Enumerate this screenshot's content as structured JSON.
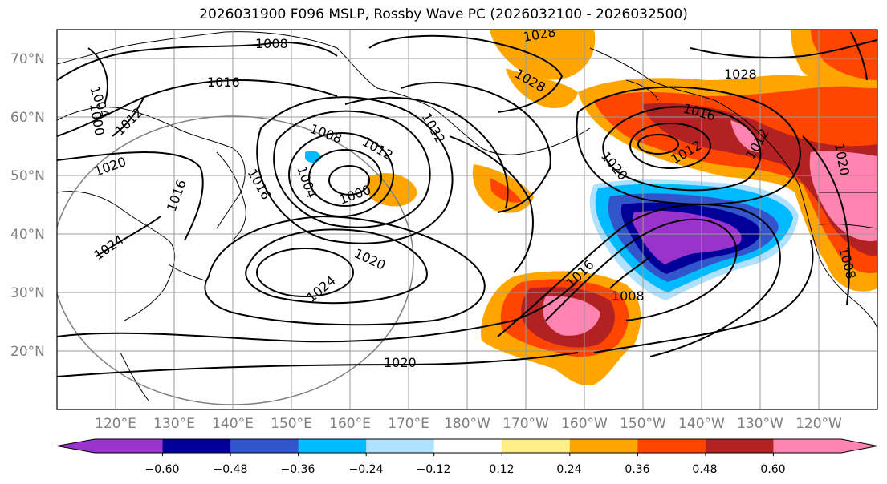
{
  "title": "2026031900 F096 MSLP, Rossby Wave PC (2026032100 - 2026032500)",
  "map": {
    "lat_range": [
      10,
      75
    ],
    "lon_range_east": [
      110,
      250
    ],
    "lat_ticks": [
      {
        "value": 20,
        "label": "20°N"
      },
      {
        "value": 30,
        "label": "30°N"
      },
      {
        "value": 40,
        "label": "40°N"
      },
      {
        "value": 50,
        "label": "50°N"
      },
      {
        "value": 60,
        "label": "60°N"
      },
      {
        "value": 70,
        "label": "70°N"
      }
    ],
    "lon_ticks": [
      {
        "value": 120,
        "label": "120°E"
      },
      {
        "value": 130,
        "label": "130°E"
      },
      {
        "value": 140,
        "label": "140°E"
      },
      {
        "value": 150,
        "label": "150°E"
      },
      {
        "value": 160,
        "label": "160°E"
      },
      {
        "value": 170,
        "label": "170°E"
      },
      {
        "value": 180,
        "label": "180°W"
      },
      {
        "value": 190,
        "label": "170°W"
      },
      {
        "value": 200,
        "label": "160°W"
      },
      {
        "value": 210,
        "label": "150°W"
      },
      {
        "value": 220,
        "label": "140°W"
      },
      {
        "value": 230,
        "label": "130°W"
      },
      {
        "value": 240,
        "label": "120°W"
      }
    ],
    "grid": true,
    "isobar_labels": [
      "1008",
      "1016",
      "1004",
      "1000",
      "1012",
      "1020",
      "1016",
      "1024",
      "1008",
      "1004",
      "1000",
      "1012",
      "1032",
      "1016",
      "1024",
      "1020",
      "1028",
      "1028",
      "1028",
      "1016",
      "1012",
      "1020",
      "1016",
      "1008",
      "1020",
      "1012",
      "1008",
      "1020"
    ]
  },
  "colorbar": {
    "colors": [
      "#9933cc",
      "#000099",
      "#3355cc",
      "#00bbff",
      "#b0e0ff",
      "#ffffff",
      "#ffee88",
      "#ffa500",
      "#ff4500",
      "#b22222",
      "#ff85b0"
    ],
    "ticks": [
      "−0.60",
      "−0.48",
      "−0.36",
      "−0.24",
      "−0.12",
      "0.12",
      "0.24",
      "0.36",
      "0.48",
      "0.60"
    ]
  }
}
